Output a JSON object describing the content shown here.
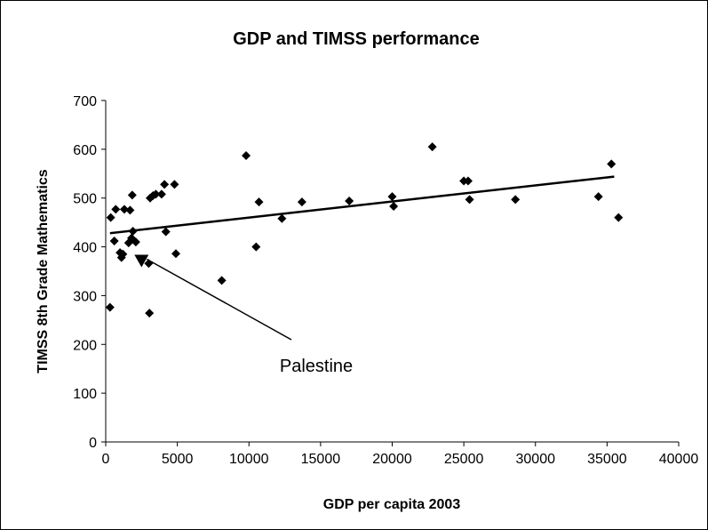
{
  "chart_data": {
    "type": "scatter",
    "title": "GDP and TIMSS performance",
    "xlabel": "GDP per capita 2003",
    "ylabel": "TIMSS 8th Grade Mathematics",
    "xlim": [
      0,
      40000
    ],
    "ylim": [
      0,
      700
    ],
    "x_ticks": [
      "0",
      "5000",
      "10000",
      "15000",
      "20000",
      "25000",
      "30000",
      "35000",
      "40000"
    ],
    "y_ticks": [
      "0",
      "100",
      "200",
      "300",
      "400",
      "500",
      "600",
      "700"
    ],
    "grid": false,
    "legend": "none",
    "marker": "diamond",
    "marker_color": "#000000",
    "points": [
      [
        300,
        276
      ],
      [
        350,
        460
      ],
      [
        600,
        412
      ],
      [
        700,
        477
      ],
      [
        1000,
        388
      ],
      [
        1100,
        378
      ],
      [
        1200,
        385
      ],
      [
        1300,
        477
      ],
      [
        1600,
        408
      ],
      [
        1700,
        475
      ],
      [
        1800,
        418
      ],
      [
        1850,
        506
      ],
      [
        1900,
        432
      ],
      [
        2100,
        410
      ],
      [
        3000,
        366
      ],
      [
        3050,
        264
      ],
      [
        3100,
        500
      ],
      [
        3300,
        505
      ],
      [
        3500,
        508
      ],
      [
        3900,
        508
      ],
      [
        4100,
        528
      ],
      [
        4200,
        431
      ],
      [
        4800,
        528
      ],
      [
        4900,
        386
      ],
      [
        8100,
        331
      ],
      [
        9800,
        587
      ],
      [
        10500,
        400
      ],
      [
        10700,
        492
      ],
      [
        12300,
        458
      ],
      [
        13700,
        492
      ],
      [
        17000,
        494
      ],
      [
        20000,
        503
      ],
      [
        20100,
        483
      ],
      [
        22800,
        605
      ],
      [
        25000,
        535
      ],
      [
        25300,
        535
      ],
      [
        25400,
        497
      ],
      [
        28600,
        497
      ],
      [
        34400,
        503
      ],
      [
        35300,
        570
      ],
      [
        35800,
        460
      ]
    ],
    "highlight_point": [
      2500,
      371
    ],
    "trendline": {
      "x": [
        300,
        35500
      ],
      "y": [
        428,
        544
      ]
    },
    "annotation": {
      "text": "Palestine",
      "anchor_x": 2500,
      "anchor_y": 371
    }
  }
}
